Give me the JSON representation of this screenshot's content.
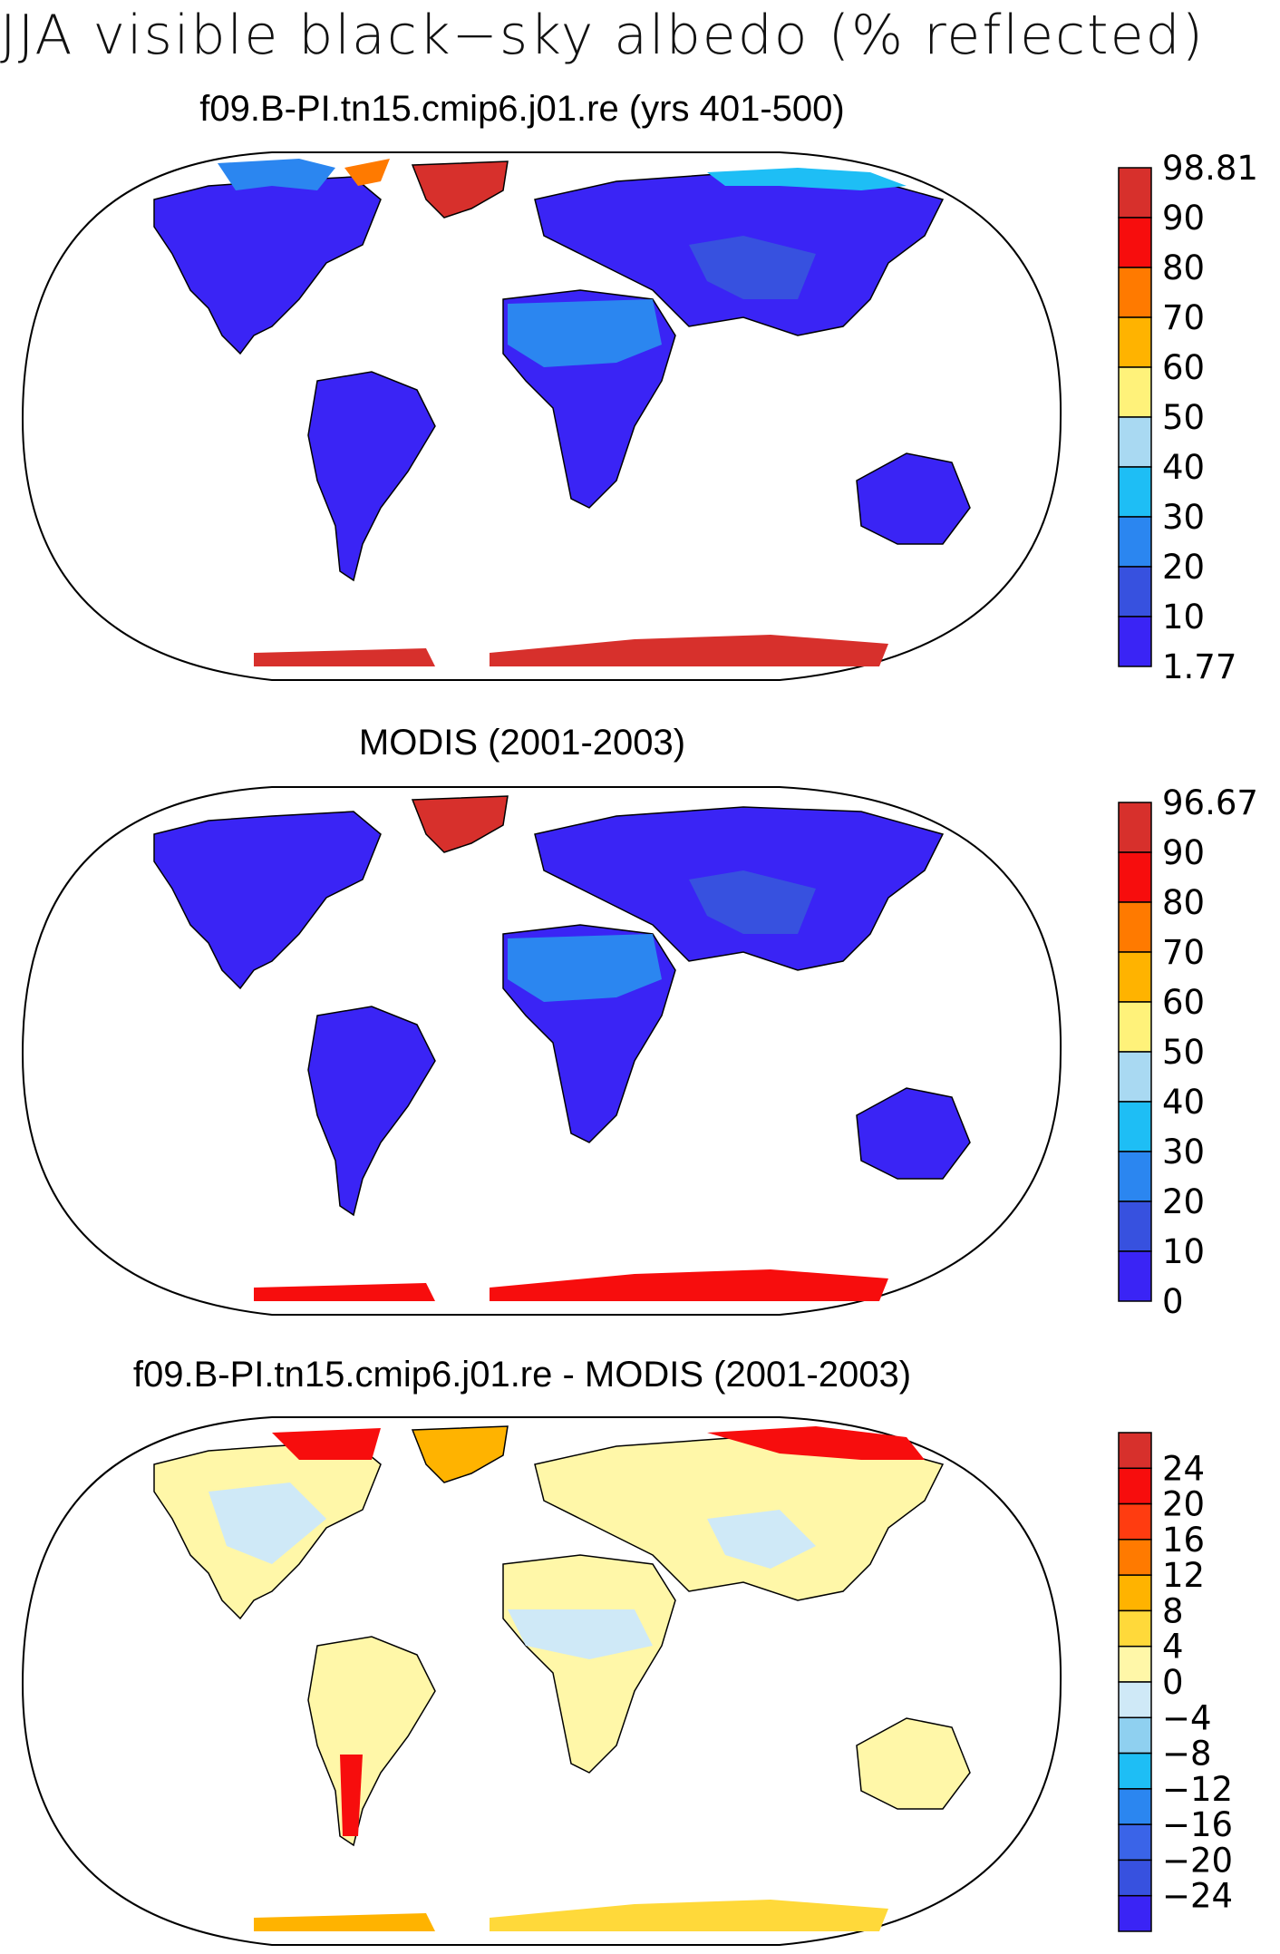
{
  "title": "JJA visible black−sky albedo (% reflected)",
  "panels": [
    {
      "id": "model",
      "title": "f09.B-PI.tn15.cmip6.j01.re (yrs 401-500)",
      "colorbar": {
        "labels": [
          "98.81",
          "90",
          "80",
          "70",
          "60",
          "50",
          "40",
          "30",
          "20",
          "10",
          "1.77"
        ],
        "colors": [
          "#d7302c",
          "#f70d0d",
          "#ff7a00",
          "#ffb300",
          "#fff27a",
          "#a9d9f2",
          "#1ebef5",
          "#2b86f0",
          "#3751df",
          "#3a24f5"
        ]
      }
    },
    {
      "id": "obs",
      "title": "MODIS (2001-2003)",
      "colorbar": {
        "labels": [
          "96.67",
          "90",
          "80",
          "70",
          "60",
          "50",
          "40",
          "30",
          "20",
          "10",
          "0"
        ],
        "colors": [
          "#d7302c",
          "#f70d0d",
          "#ff7a00",
          "#ffb300",
          "#fff27a",
          "#a9d9f2",
          "#1ebef5",
          "#2b86f0",
          "#3751df",
          "#3a24f5"
        ]
      }
    },
    {
      "id": "diff",
      "title": "f09.B-PI.tn15.cmip6.j01.re - MODIS (2001-2003)",
      "colorbar": {
        "labels": [
          "24",
          "20",
          "16",
          "12",
          "8",
          "4",
          "0",
          "−4",
          "−8",
          "−12",
          "−16",
          "−20",
          "−24"
        ],
        "colors": [
          "#d7302c",
          "#f70d0d",
          "#ff3c10",
          "#ff7a00",
          "#ffb300",
          "#ffd93a",
          "#fff7a8",
          "#cfe9f7",
          "#8fd0f0",
          "#1ebef5",
          "#2b86f0",
          "#3a64e8",
          "#3751df",
          "#3a24f5"
        ]
      }
    }
  ]
}
